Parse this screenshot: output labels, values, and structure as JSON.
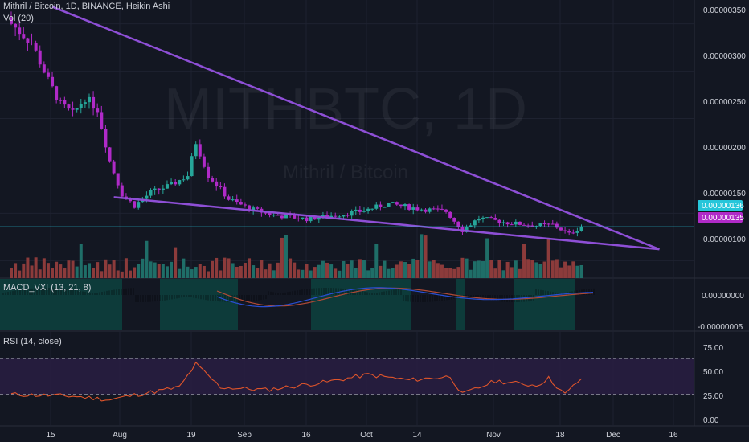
{
  "colors": {
    "background": "#131722",
    "up": "#26a69a",
    "down": "#b02ac8",
    "trendline": "#8e4fd6",
    "grid": "#1e2230",
    "vol_up": "#1f6e68",
    "vol_down": "#8c3b3b",
    "rsi_line": "#e0552b",
    "rsi_band": "#2a1e45",
    "macd_line": "#b04a36",
    "macd_signal": "#2a4fd4",
    "last_price_tag": "#26c6da",
    "second_price_tag": "#b02ac8"
  },
  "header": {
    "symbol_line": "Mithril / Bitcoin, 1D, BINANCE, Heikin Ashi",
    "volume_line": "Vol (20)"
  },
  "watermark": {
    "title": "MITHBTC, 1D",
    "subtitle": "Mithril / Bitcoin"
  },
  "price_panel": {
    "ticks": [
      "0.00000350",
      "0.00000300",
      "0.00000250",
      "0.00000200",
      "0.00000150",
      "0.00000100"
    ],
    "last_price": "0.00000136",
    "second_price": "0.00000135"
  },
  "macd_panel": {
    "label": "MACD_VXI (13, 21, 8)",
    "ticks": [
      "0.00000000",
      "-0.00000005"
    ]
  },
  "rsi_panel": {
    "label": "RSI (14, close)",
    "ticks": [
      "75.00",
      "50.00",
      "25.00",
      "0.00"
    ]
  },
  "time_axis": {
    "labels": [
      "15",
      "Aug",
      "19",
      "Sep",
      "16",
      "Oct",
      "14",
      "Nov",
      "18",
      "Dec",
      "16"
    ]
  },
  "chart_data": {
    "type": "candlestick",
    "title": "Mithril / Bitcoin, 1D, BINANCE, Heikin Ashi",
    "ylim": [
      8.5e-07,
      3.65e-06
    ],
    "x_range": [
      "2019-07-10",
      "2019-12-20"
    ],
    "grid": true,
    "anchors": [
      {
        "date": "2019-07-10",
        "close": 3.5e-06
      },
      {
        "date": "2019-07-15",
        "close": 3.3e-06
      },
      {
        "date": "2019-07-19",
        "close": 2.9e-06
      },
      {
        "date": "2019-07-22",
        "close": 2.65e-06
      },
      {
        "date": "2019-07-25",
        "close": 2.55e-06
      },
      {
        "date": "2019-07-28",
        "close": 2.72e-06
      },
      {
        "date": "2019-07-31",
        "close": 2.6e-06
      },
      {
        "date": "2019-08-03",
        "close": 2.05e-06
      },
      {
        "date": "2019-08-06",
        "close": 1.7e-06
      },
      {
        "date": "2019-08-09",
        "close": 1.58e-06
      },
      {
        "date": "2019-08-13",
        "close": 1.72e-06
      },
      {
        "date": "2019-08-18",
        "close": 1.8e-06
      },
      {
        "date": "2019-08-22",
        "close": 1.9e-06
      },
      {
        "date": "2019-08-24",
        "close": 2.25e-06
      },
      {
        "date": "2019-08-27",
        "close": 1.9e-06
      },
      {
        "date": "2019-09-01",
        "close": 1.65e-06
      },
      {
        "date": "2019-09-06",
        "close": 1.55e-06
      },
      {
        "date": "2019-09-12",
        "close": 1.48e-06
      },
      {
        "date": "2019-09-20",
        "close": 1.44e-06
      },
      {
        "date": "2019-09-27",
        "close": 1.48e-06
      },
      {
        "date": "2019-10-03",
        "close": 1.52e-06
      },
      {
        "date": "2019-10-10",
        "close": 1.6e-06
      },
      {
        "date": "2019-10-17",
        "close": 1.55e-06
      },
      {
        "date": "2019-10-24",
        "close": 1.52e-06
      },
      {
        "date": "2019-10-28",
        "close": 1.32e-06
      },
      {
        "date": "2019-11-01",
        "close": 1.45e-06
      },
      {
        "date": "2019-11-08",
        "close": 1.4e-06
      },
      {
        "date": "2019-11-15",
        "close": 1.37e-06
      },
      {
        "date": "2019-11-19",
        "close": 1.38e-06
      },
      {
        "date": "2019-11-23",
        "close": 1.28e-06
      },
      {
        "date": "2019-11-26",
        "close": 1.36e-06
      }
    ],
    "trendlines": [
      {
        "name": "upper",
        "from": {
          "date": "2019-07-20",
          "value": 3.68e-06
        },
        "to": {
          "date": "2019-12-15",
          "value": 1.12e-06
        }
      },
      {
        "name": "lower",
        "from": {
          "date": "2019-08-04",
          "value": 1.67e-06
        },
        "to": {
          "date": "2019-12-15",
          "value": 1.12e-06
        }
      }
    ],
    "rsi": {
      "ylim": [
        0,
        90
      ],
      "levels": [
        30,
        70
      ],
      "anchors": [
        {
          "date": "2019-07-10",
          "value": 30
        },
        {
          "date": "2019-07-25",
          "value": 28
        },
        {
          "date": "2019-08-03",
          "value": 24
        },
        {
          "date": "2019-08-10",
          "value": 30
        },
        {
          "date": "2019-08-20",
          "value": 38
        },
        {
          "date": "2019-08-24",
          "value": 64
        },
        {
          "date": "2019-08-30",
          "value": 38
        },
        {
          "date": "2019-09-10",
          "value": 35
        },
        {
          "date": "2019-09-25",
          "value": 44
        },
        {
          "date": "2019-10-05",
          "value": 52
        },
        {
          "date": "2019-10-15",
          "value": 46
        },
        {
          "date": "2019-10-25",
          "value": 50
        },
        {
          "date": "2019-10-28",
          "value": 30
        },
        {
          "date": "2019-11-05",
          "value": 45
        },
        {
          "date": "2019-11-15",
          "value": 40
        },
        {
          "date": "2019-11-18",
          "value": 48
        },
        {
          "date": "2019-11-22",
          "value": 30
        },
        {
          "date": "2019-11-26",
          "value": 48
        }
      ]
    }
  }
}
